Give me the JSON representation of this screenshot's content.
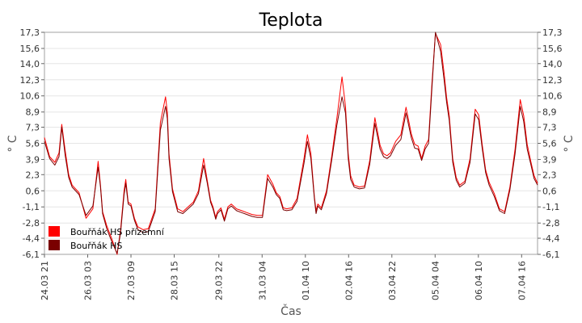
{
  "chart_data": {
    "type": "line",
    "title": "Teplota",
    "xlabel": "Čas",
    "ylabel": "° C",
    "ylim": [
      -6.1,
      17.3
    ],
    "yticks": [
      "17,3",
      "15,6",
      "14,0",
      "12,3",
      "10,6",
      "8,9",
      "7,3",
      "5,6",
      "3,9",
      "2,3",
      "0,6",
      "-1,1",
      "-2,8",
      "-4,4",
      "-6,1"
    ],
    "ytick_values": [
      17.3,
      15.6,
      14.0,
      12.3,
      10.6,
      8.9,
      7.3,
      5.6,
      3.9,
      2.3,
      0.6,
      -1.1,
      -2.8,
      -4.4,
      -6.1
    ],
    "xticks": [
      "24.03 21",
      "26.03 03",
      "27.03 09",
      "28.03 15",
      "29.03 22",
      "31.03 04",
      "01.04 10",
      "02.04 16",
      "03.04 22",
      "05.04 04",
      "06.04 10",
      "07.04 16"
    ],
    "xtick_days": [
      0,
      1.25,
      2.5,
      3.75,
      5.04,
      6.29,
      7.54,
      8.79,
      10.04,
      11.29,
      12.54,
      13.79
    ],
    "xlim_days": [
      0,
      14.25
    ],
    "grid": true,
    "legend_position": "bottom-left",
    "series": [
      {
        "name": "Bouřňák HS přízemní",
        "color": "#ff0000",
        "x": [
          0,
          0.15,
          0.3,
          0.42,
          0.5,
          0.6,
          0.7,
          0.8,
          1.0,
          1.2,
          1.4,
          1.55,
          1.62,
          1.68,
          1.8,
          1.95,
          2.1,
          2.2,
          2.3,
          2.35,
          2.42,
          2.5,
          2.6,
          2.7,
          2.85,
          3.0,
          3.2,
          3.35,
          3.5,
          3.55,
          3.6,
          3.7,
          3.85,
          4.0,
          4.15,
          4.3,
          4.45,
          4.6,
          4.7,
          4.8,
          4.87,
          4.95,
          5.0,
          5.1,
          5.2,
          5.3,
          5.4,
          5.55,
          5.7,
          5.85,
          6.0,
          6.15,
          6.3,
          6.45,
          6.6,
          6.7,
          6.8,
          6.9,
          7.0,
          7.15,
          7.3,
          7.5,
          7.6,
          7.7,
          7.8,
          7.85,
          7.9,
          8.0,
          8.15,
          8.3,
          8.45,
          8.6,
          8.7,
          8.78,
          8.85,
          8.95,
          9.1,
          9.25,
          9.4,
          9.55,
          9.7,
          9.8,
          9.9,
          10.0,
          10.15,
          10.3,
          10.45,
          10.6,
          10.7,
          10.8,
          10.9,
          11.0,
          11.1,
          11.2,
          11.3,
          11.45,
          11.55,
          11.62,
          11.7,
          11.8,
          11.9,
          12.0,
          12.15,
          12.3,
          12.45,
          12.55,
          12.65,
          12.75,
          12.85,
          13.0,
          13.15,
          13.3,
          13.45,
          13.6,
          13.75,
          13.85,
          13.95,
          14.05,
          14.15,
          14.25
        ],
        "values": [
          6.2,
          4.2,
          3.6,
          4.6,
          7.6,
          4.8,
          2.3,
          1.2,
          0.4,
          -2.3,
          -1.3,
          3.7,
          1.2,
          -1.6,
          -3.1,
          -4.5,
          -6.1,
          -3.5,
          0.6,
          1.8,
          -0.6,
          -0.8,
          -2.3,
          -3.2,
          -3.5,
          -3.4,
          -1.3,
          7.8,
          10.5,
          8.9,
          4.5,
          0.8,
          -1.3,
          -1.6,
          -1.1,
          -0.6,
          0.6,
          4.0,
          1.8,
          -0.4,
          -1.1,
          -2.2,
          -1.6,
          -1.2,
          -2.4,
          -1.1,
          -0.8,
          -1.3,
          -1.5,
          -1.7,
          -1.9,
          -2.0,
          -2.0,
          2.3,
          1.3,
          0.4,
          0.0,
          -1.2,
          -1.3,
          -1.2,
          -0.2,
          4.0,
          6.5,
          4.5,
          0.0,
          -1.5,
          -0.8,
          -1.2,
          0.6,
          4.2,
          8.2,
          12.6,
          9.5,
          4.5,
          2.2,
          1.2,
          1.0,
          1.1,
          3.8,
          8.3,
          5.4,
          4.5,
          4.3,
          4.6,
          5.8,
          6.5,
          9.4,
          6.6,
          5.5,
          5.3,
          4.0,
          5.3,
          6.0,
          12.0,
          17.2,
          16.0,
          13.0,
          10.5,
          8.5,
          4.0,
          2.0,
          1.2,
          1.6,
          4.0,
          9.2,
          8.6,
          5.5,
          2.8,
          1.5,
          0.3,
          -1.3,
          -1.6,
          1.0,
          5.0,
          10.2,
          8.5,
          5.5,
          3.8,
          2.2,
          1.4
        ]
      },
      {
        "name": "Bouřňák HS",
        "color": "#7a0000",
        "x": [
          0,
          0.15,
          0.3,
          0.42,
          0.5,
          0.6,
          0.7,
          0.8,
          1.0,
          1.2,
          1.4,
          1.55,
          1.62,
          1.68,
          1.8,
          1.95,
          2.1,
          2.2,
          2.3,
          2.35,
          2.42,
          2.5,
          2.6,
          2.7,
          2.85,
          3.0,
          3.2,
          3.35,
          3.5,
          3.55,
          3.6,
          3.7,
          3.85,
          4.0,
          4.15,
          4.3,
          4.45,
          4.6,
          4.7,
          4.8,
          4.87,
          4.95,
          5.0,
          5.1,
          5.2,
          5.3,
          5.4,
          5.55,
          5.7,
          5.85,
          6.0,
          6.15,
          6.3,
          6.45,
          6.6,
          6.7,
          6.8,
          6.9,
          7.0,
          7.15,
          7.3,
          7.5,
          7.6,
          7.7,
          7.8,
          7.85,
          7.9,
          8.0,
          8.15,
          8.3,
          8.45,
          8.6,
          8.7,
          8.78,
          8.85,
          8.95,
          9.1,
          9.25,
          9.4,
          9.55,
          9.7,
          9.8,
          9.9,
          10.0,
          10.15,
          10.3,
          10.45,
          10.6,
          10.7,
          10.8,
          10.9,
          11.0,
          11.1,
          11.2,
          11.3,
          11.45,
          11.55,
          11.62,
          11.7,
          11.8,
          11.9,
          12.0,
          12.15,
          12.3,
          12.45,
          12.55,
          12.65,
          12.75,
          12.85,
          13.0,
          13.15,
          13.3,
          13.45,
          13.6,
          13.75,
          13.85,
          13.95,
          14.05,
          14.15,
          14.25
        ],
        "values": [
          5.8,
          4.0,
          3.3,
          4.2,
          7.3,
          4.3,
          2.0,
          1.0,
          0.2,
          -2.0,
          -1.0,
          3.1,
          1.0,
          -1.8,
          -3.4,
          -4.8,
          -6.0,
          -3.8,
          0.2,
          1.4,
          -0.8,
          -1.0,
          -2.5,
          -3.5,
          -3.8,
          -3.7,
          -1.6,
          7.0,
          9.5,
          8.2,
          4.0,
          0.5,
          -1.6,
          -1.8,
          -1.3,
          -0.8,
          0.3,
          3.3,
          1.5,
          -0.6,
          -1.3,
          -2.4,
          -1.8,
          -1.4,
          -2.6,
          -1.3,
          -1.0,
          -1.5,
          -1.7,
          -1.9,
          -2.1,
          -2.2,
          -2.2,
          1.9,
          1.0,
          0.2,
          -0.2,
          -1.4,
          -1.5,
          -1.4,
          -0.5,
          3.5,
          5.8,
          4.0,
          -0.2,
          -1.8,
          -1.0,
          -1.4,
          0.3,
          3.8,
          7.5,
          10.5,
          8.8,
          4.0,
          1.8,
          1.0,
          0.8,
          0.9,
          3.4,
          7.7,
          5.0,
          4.2,
          4.0,
          4.3,
          5.4,
          6.0,
          8.8,
          6.2,
          5.1,
          5.0,
          3.8,
          5.0,
          5.6,
          11.5,
          17.3,
          15.3,
          12.3,
          10.0,
          8.0,
          3.6,
          1.7,
          1.0,
          1.4,
          3.6,
          8.7,
          8.1,
          5.1,
          2.5,
          1.2,
          0.0,
          -1.5,
          -1.8,
          0.7,
          4.5,
          9.5,
          7.9,
          5.0,
          3.5,
          1.9,
          1.2
        ]
      }
    ]
  }
}
